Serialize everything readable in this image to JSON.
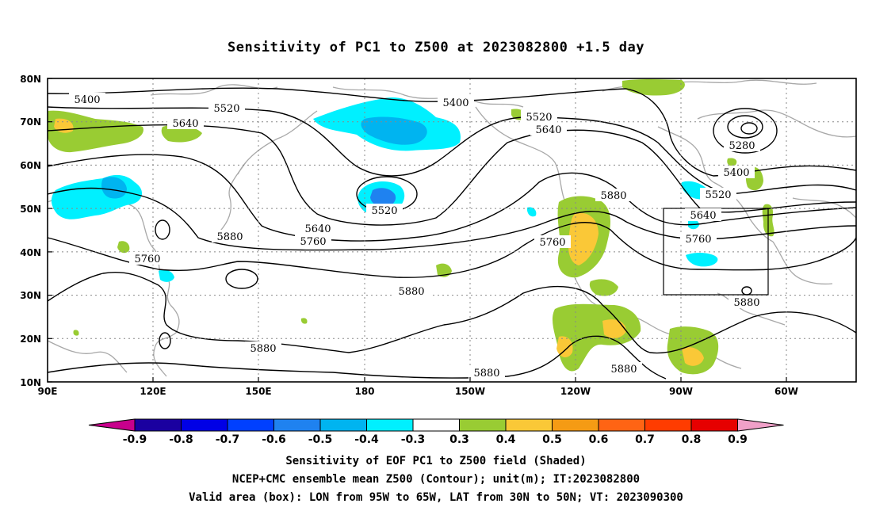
{
  "title": "Sensitivity of PC1 to Z500 at 2023082800 +1.5 day",
  "map": {
    "lat_labels": [
      "80N",
      "70N",
      "60N",
      "50N",
      "40N",
      "30N",
      "20N",
      "10N"
    ],
    "lon_labels": [
      "90E",
      "120E",
      "150E",
      "180",
      "150W",
      "120W",
      "90W",
      "60W"
    ],
    "lat_range": [
      10,
      80
    ],
    "lon_range": [
      90,
      320
    ],
    "gridlines": "dotted",
    "valid_box": {
      "lon": [
        "95W",
        "65W"
      ],
      "lat": [
        "30N",
        "50N"
      ]
    },
    "contour_labels": [
      "5400",
      "5520",
      "5640",
      "5400",
      "5520",
      "5640",
      "5280",
      "5400",
      "5520",
      "5640",
      "5760",
      "5880",
      "5520",
      "5640",
      "5760",
      "5880",
      "5760",
      "5760",
      "5880",
      "5880",
      "5880",
      "5880",
      "5880"
    ]
  },
  "colorbar": {
    "labels": [
      "-0.9",
      "-0.8",
      "-0.7",
      "-0.6",
      "-0.5",
      "-0.4",
      "-0.3",
      "0.3",
      "0.4",
      "0.5",
      "0.6",
      "0.7",
      "0.8",
      "0.9"
    ],
    "colors": [
      "#1a00a0",
      "#0000e6",
      "#0040ff",
      "#1f82f0",
      "#00b4f0",
      "#00f0ff",
      "#ffffff",
      "#99cc33",
      "#fac837",
      "#f59b14",
      "#ff6414",
      "#ff3c00",
      "#e60000"
    ],
    "low_extend_color": "#c8008c",
    "high_extend_color": "#f0a0c8"
  },
  "captions": [
    "Sensitivity of EOF PC1 to Z500 field (Shaded)",
    "NCEP+CMC ensemble mean Z500 (Contour); unit(m); IT:2023082800",
    "Valid area (box): LON from 95W to 65W, LAT from 30N to 50N; VT: 2023090300"
  ]
}
